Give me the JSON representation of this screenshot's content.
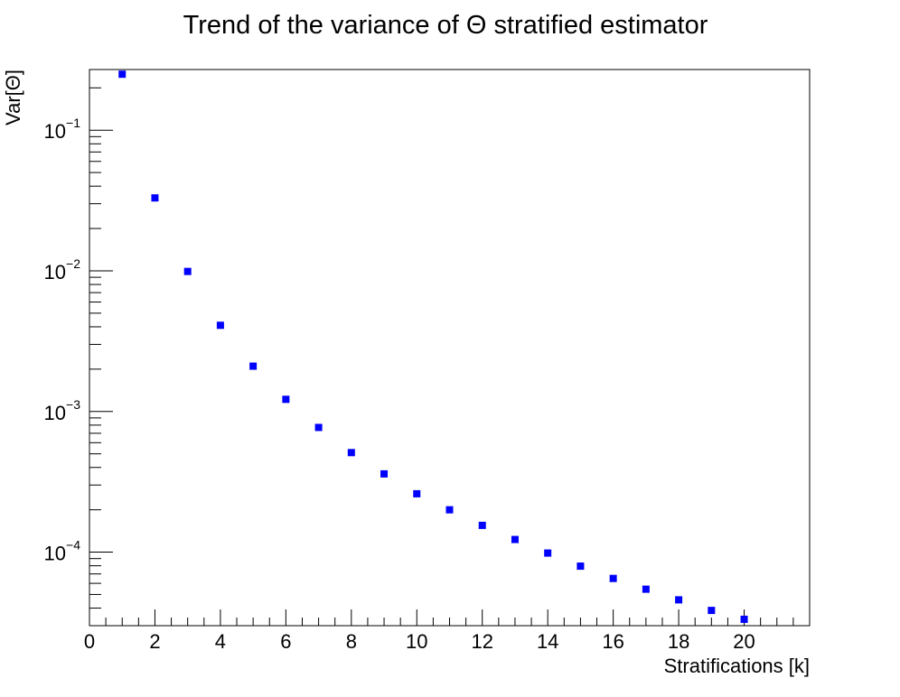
{
  "chart_data": {
    "type": "scatter",
    "title": "Trend of the variance of  Θ stratified estimator",
    "xlabel": "Stratifications [k]",
    "ylabel": "Var[Θ]",
    "xlim": [
      0,
      22
    ],
    "ylim": [
      3e-05,
      0.27
    ],
    "yscale": "log",
    "grid": false,
    "marker": "square",
    "color": "#0000ff",
    "x_tick_labels": [
      "0",
      "2",
      "4",
      "6",
      "8",
      "10",
      "12",
      "14",
      "16",
      "18",
      "20"
    ],
    "y_tick_labels": [
      {
        "value": 0.0001,
        "base": "10",
        "exp": "−4"
      },
      {
        "value": 0.001,
        "base": "10",
        "exp": "−3"
      },
      {
        "value": 0.01,
        "base": "10",
        "exp": "−2"
      },
      {
        "value": 0.1,
        "base": "10",
        "exp": "−1"
      }
    ],
    "series": [
      {
        "x": [
          1,
          2,
          3,
          4,
          5,
          6,
          7,
          8,
          9,
          10,
          11,
          12,
          13,
          14,
          15,
          16,
          17,
          18,
          19,
          20
        ],
        "y": [
          0.25,
          0.033,
          0.0099,
          0.0041,
          0.0021,
          0.00122,
          0.00077,
          0.00051,
          0.00036,
          0.00026,
          0.0002,
          0.000155,
          0.000123,
          9.85e-05,
          7.95e-05,
          6.5e-05,
          5.45e-05,
          4.58e-05,
          3.85e-05,
          3.33e-05
        ]
      }
    ]
  }
}
